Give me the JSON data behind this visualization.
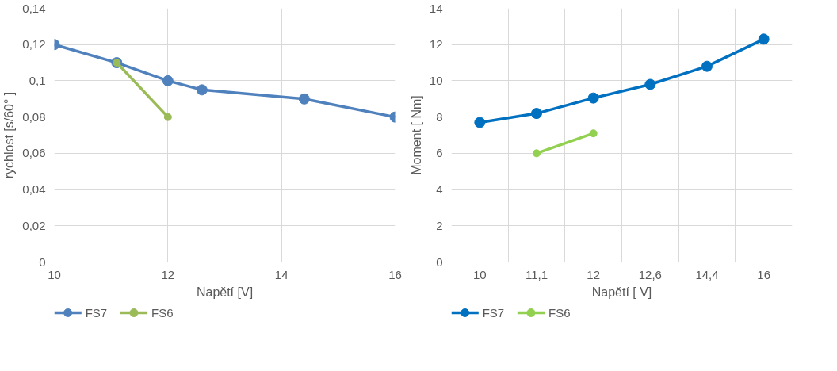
{
  "chart_data": [
    {
      "type": "line",
      "xlabel": "Napětí [V]",
      "ylabel": "rychlost [s/60° ]",
      "xlim": [
        10,
        16
      ],
      "xticks": [
        10,
        12,
        14,
        16
      ],
      "ylim": [
        0,
        0.14
      ],
      "yticks": [
        {
          "value": 0,
          "label": "0"
        },
        {
          "value": 0.02,
          "label": "0,02"
        },
        {
          "value": 0.04,
          "label": "0,04"
        },
        {
          "value": 0.06,
          "label": "0,06"
        },
        {
          "value": 0.08,
          "label": "0,08"
        },
        {
          "value": 0.1,
          "label": "0,1"
        },
        {
          "value": 0.12,
          "label": "0,12"
        },
        {
          "value": 0.14,
          "label": "0,14"
        }
      ],
      "grid": true,
      "legend": "bottom left",
      "marker": "circle",
      "line_style": "solid",
      "series": [
        {
          "name": "FS7",
          "color": "#4f81bd",
          "x": [
            10,
            11.1,
            12,
            12.6,
            14.4,
            16
          ],
          "values": [
            0.12,
            0.11,
            0.1,
            0.095,
            0.09,
            0.08
          ]
        },
        {
          "name": "FS6",
          "color": "#9bbb59",
          "x": [
            11.1,
            12
          ],
          "values": [
            0.11,
            0.08
          ]
        }
      ]
    },
    {
      "type": "line",
      "xlabel": "Napětí [ V]",
      "ylabel": "Moment [ Nm]",
      "categories": [
        "10",
        "11,1",
        "12",
        "12,6",
        "14,4",
        "16"
      ],
      "ylim": [
        0,
        14
      ],
      "yticks": [
        0,
        2,
        4,
        6,
        8,
        10,
        12,
        14
      ],
      "grid": true,
      "legend": "bottom left",
      "marker": "circle",
      "line_style": "solid",
      "series": [
        {
          "name": "FS7",
          "color": "#0070c0",
          "values": [
            7.7,
            8.2,
            9.05,
            9.8,
            10.8,
            12.3
          ]
        },
        {
          "name": "FS6",
          "color": "#92d050",
          "values": [
            null,
            6.0,
            7.1,
            null,
            null,
            null
          ]
        }
      ]
    }
  ]
}
